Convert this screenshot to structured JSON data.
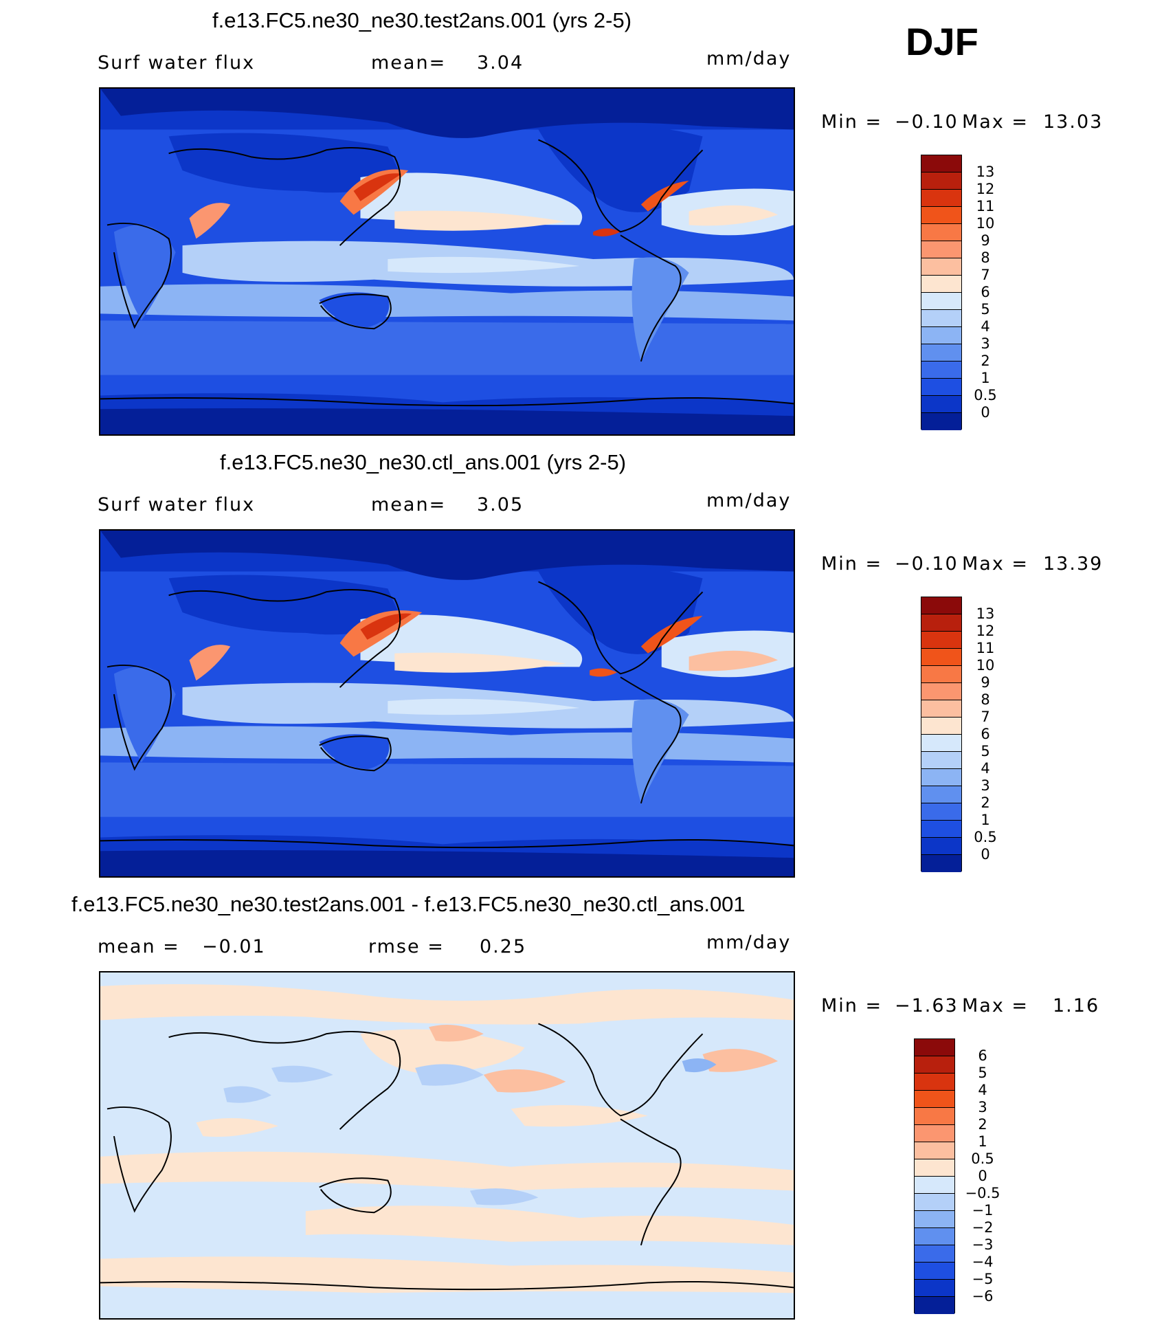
{
  "season": "DJF",
  "units": "mm/day",
  "panels": [
    {
      "title": "f.e13.FC5.ne30_ne30.test2ans.001 (yrs 2-5)",
      "left_label": "Surf water flux",
      "stat_label": "mean=",
      "stat_value": "3.04",
      "units": "mm/day",
      "min_label": "Min =",
      "min_value": "−0.10",
      "max_label": "Max =",
      "max_value": "13.03"
    },
    {
      "title": "f.e13.FC5.ne30_ne30.ctl_ans.001 (yrs 2-5)",
      "left_label": "Surf water flux",
      "stat_label": "mean=",
      "stat_value": "3.05",
      "units": "mm/day",
      "min_label": "Min =",
      "min_value": "−0.10",
      "max_label": "Max =",
      "max_value": "13.39"
    },
    {
      "title": "f.e13.FC5.ne30_ne30.test2ans.001 - f.e13.FC5.ne30_ne30.ctl_ans.001",
      "left_label": "mean =",
      "left_value": "−0.01",
      "stat_label": "rmse =",
      "stat_value": "0.25",
      "units": "mm/day",
      "min_label": "Min =",
      "min_value": "−1.63",
      "max_label": "Max =",
      "max_value": "1.16"
    }
  ],
  "colorbar_abs": {
    "levels": [
      "13",
      "12",
      "11",
      "10",
      "9",
      "8",
      "7",
      "6",
      "5",
      "4",
      "3",
      "2",
      "1",
      "0.5",
      "0"
    ],
    "colors": [
      "#8b0a0a",
      "#b8200d",
      "#d9340f",
      "#f0541a",
      "#f87845",
      "#fb9670",
      "#fcbfa0",
      "#fde5d0",
      "#d6e8fb",
      "#b4d0f8",
      "#8cb4f4",
      "#6090ef",
      "#3a6bea",
      "#1e4fe2",
      "#0c36c8",
      "#041f98"
    ]
  },
  "colorbar_diff": {
    "levels": [
      "6",
      "5",
      "4",
      "3",
      "2",
      "1",
      "0.5",
      "0",
      "−0.5",
      "−1",
      "−2",
      "−3",
      "−4",
      "−5",
      "−6"
    ],
    "colors": [
      "#8b0a0a",
      "#b8200d",
      "#d9340f",
      "#f0541a",
      "#f87845",
      "#fb9670",
      "#fcbfa0",
      "#fde5d0",
      "#d6e8fb",
      "#b4d0f8",
      "#8cb4f4",
      "#6090ef",
      "#3a6bea",
      "#1e4fe2",
      "#0c36c8",
      "#041f98"
    ]
  }
}
